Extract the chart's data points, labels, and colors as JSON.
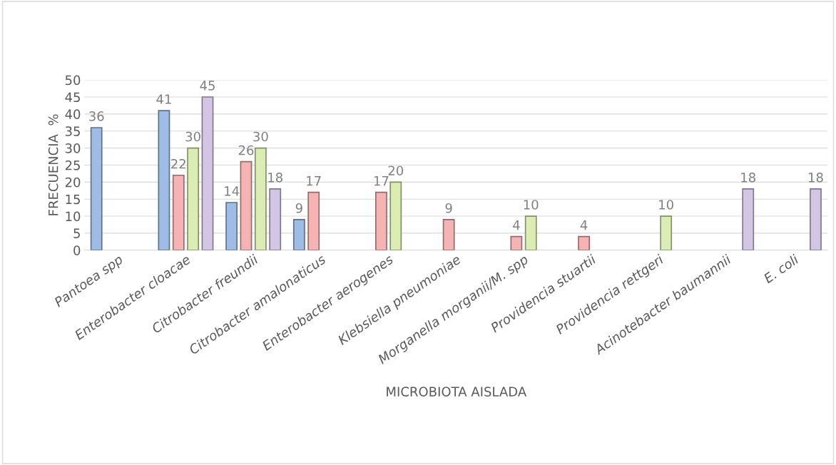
{
  "chart_data": {
    "type": "bar",
    "xlabel": "MICROBIOTA AISLADA",
    "ylabel": "FRECUENCIA  %",
    "categories": [
      "Pantoea spp",
      "Enterobacter cloacae",
      "Citrobacter freundii",
      "Citrobacter amalonaticus",
      "Enterobacter aerogenes",
      "Klebsiella pneumoniae",
      "Morganella morganii/M. spp",
      "Providencia stuartii",
      "Providencia rettgeri",
      "Acinotebacter baumannii",
      "E. coli"
    ],
    "series": [
      {
        "color": "#9dbde6",
        "values": [
          36,
          41,
          14,
          9,
          null,
          null,
          null,
          null,
          null,
          null,
          null
        ]
      },
      {
        "color": "#f6b3b3",
        "values": [
          null,
          22,
          26,
          17,
          17,
          9,
          4,
          4,
          null,
          null,
          null
        ]
      },
      {
        "color": "#dcedb3",
        "values": [
          null,
          30,
          30,
          null,
          20,
          null,
          10,
          null,
          10,
          null,
          null
        ]
      },
      {
        "color": "#d3c6e4",
        "values": [
          null,
          45,
          18,
          null,
          null,
          null,
          null,
          null,
          null,
          18,
          18
        ]
      }
    ],
    "ylim": [
      0,
      50
    ],
    "yticks": [
      0,
      5,
      10,
      15,
      20,
      25,
      30,
      35,
      40,
      45,
      50
    ],
    "grid": "y",
    "data_labels": true
  }
}
